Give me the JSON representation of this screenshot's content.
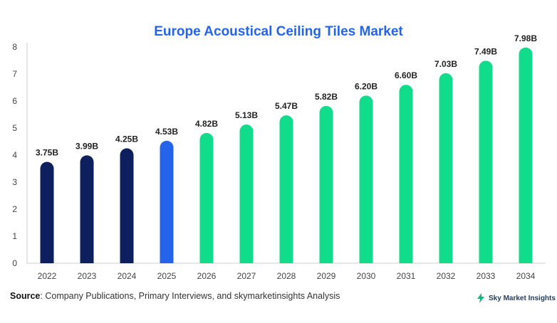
{
  "chart_data": {
    "type": "bar",
    "title": "Europe Acoustical Ceiling Tiles Market",
    "categories": [
      "2022",
      "2023",
      "2024",
      "2025",
      "2026",
      "2027",
      "2028",
      "2029",
      "2030",
      "2031",
      "2032",
      "2033",
      "2034"
    ],
    "values": [
      3.75,
      3.99,
      4.25,
      4.53,
      4.82,
      5.13,
      5.47,
      5.82,
      6.2,
      6.6,
      7.03,
      7.49,
      7.98
    ],
    "value_labels": [
      "3.75B",
      "3.99B",
      "4.25B",
      "4.53B",
      "4.82B",
      "5.13B",
      "5.47B",
      "5.82B",
      "6.20B",
      "6.60B",
      "7.03B",
      "7.49B",
      "7.98B"
    ],
    "bar_colors": [
      "#0d1f5c",
      "#0d1f5c",
      "#0d1f5c",
      "#2563eb",
      "#10dc8c",
      "#10dc8c",
      "#10dc8c",
      "#10dc8c",
      "#10dc8c",
      "#10dc8c",
      "#10dc8c",
      "#10dc8c",
      "#10dc8c"
    ],
    "yticks": [
      "0",
      "1",
      "2",
      "3",
      "4",
      "5",
      "6",
      "7",
      "8"
    ],
    "ylim": [
      0,
      8
    ],
    "xlabel": "",
    "ylabel": "",
    "grid": false,
    "legend": "none"
  },
  "footer": {
    "source_label": "Source",
    "source_text": ": Company Publications, Primary Interviews, and skymarketinsights Analysis",
    "brand": "Sky Market Insights"
  },
  "colors": {
    "title": "#2563eb",
    "axis": "#cccccc",
    "text": "#333333"
  }
}
